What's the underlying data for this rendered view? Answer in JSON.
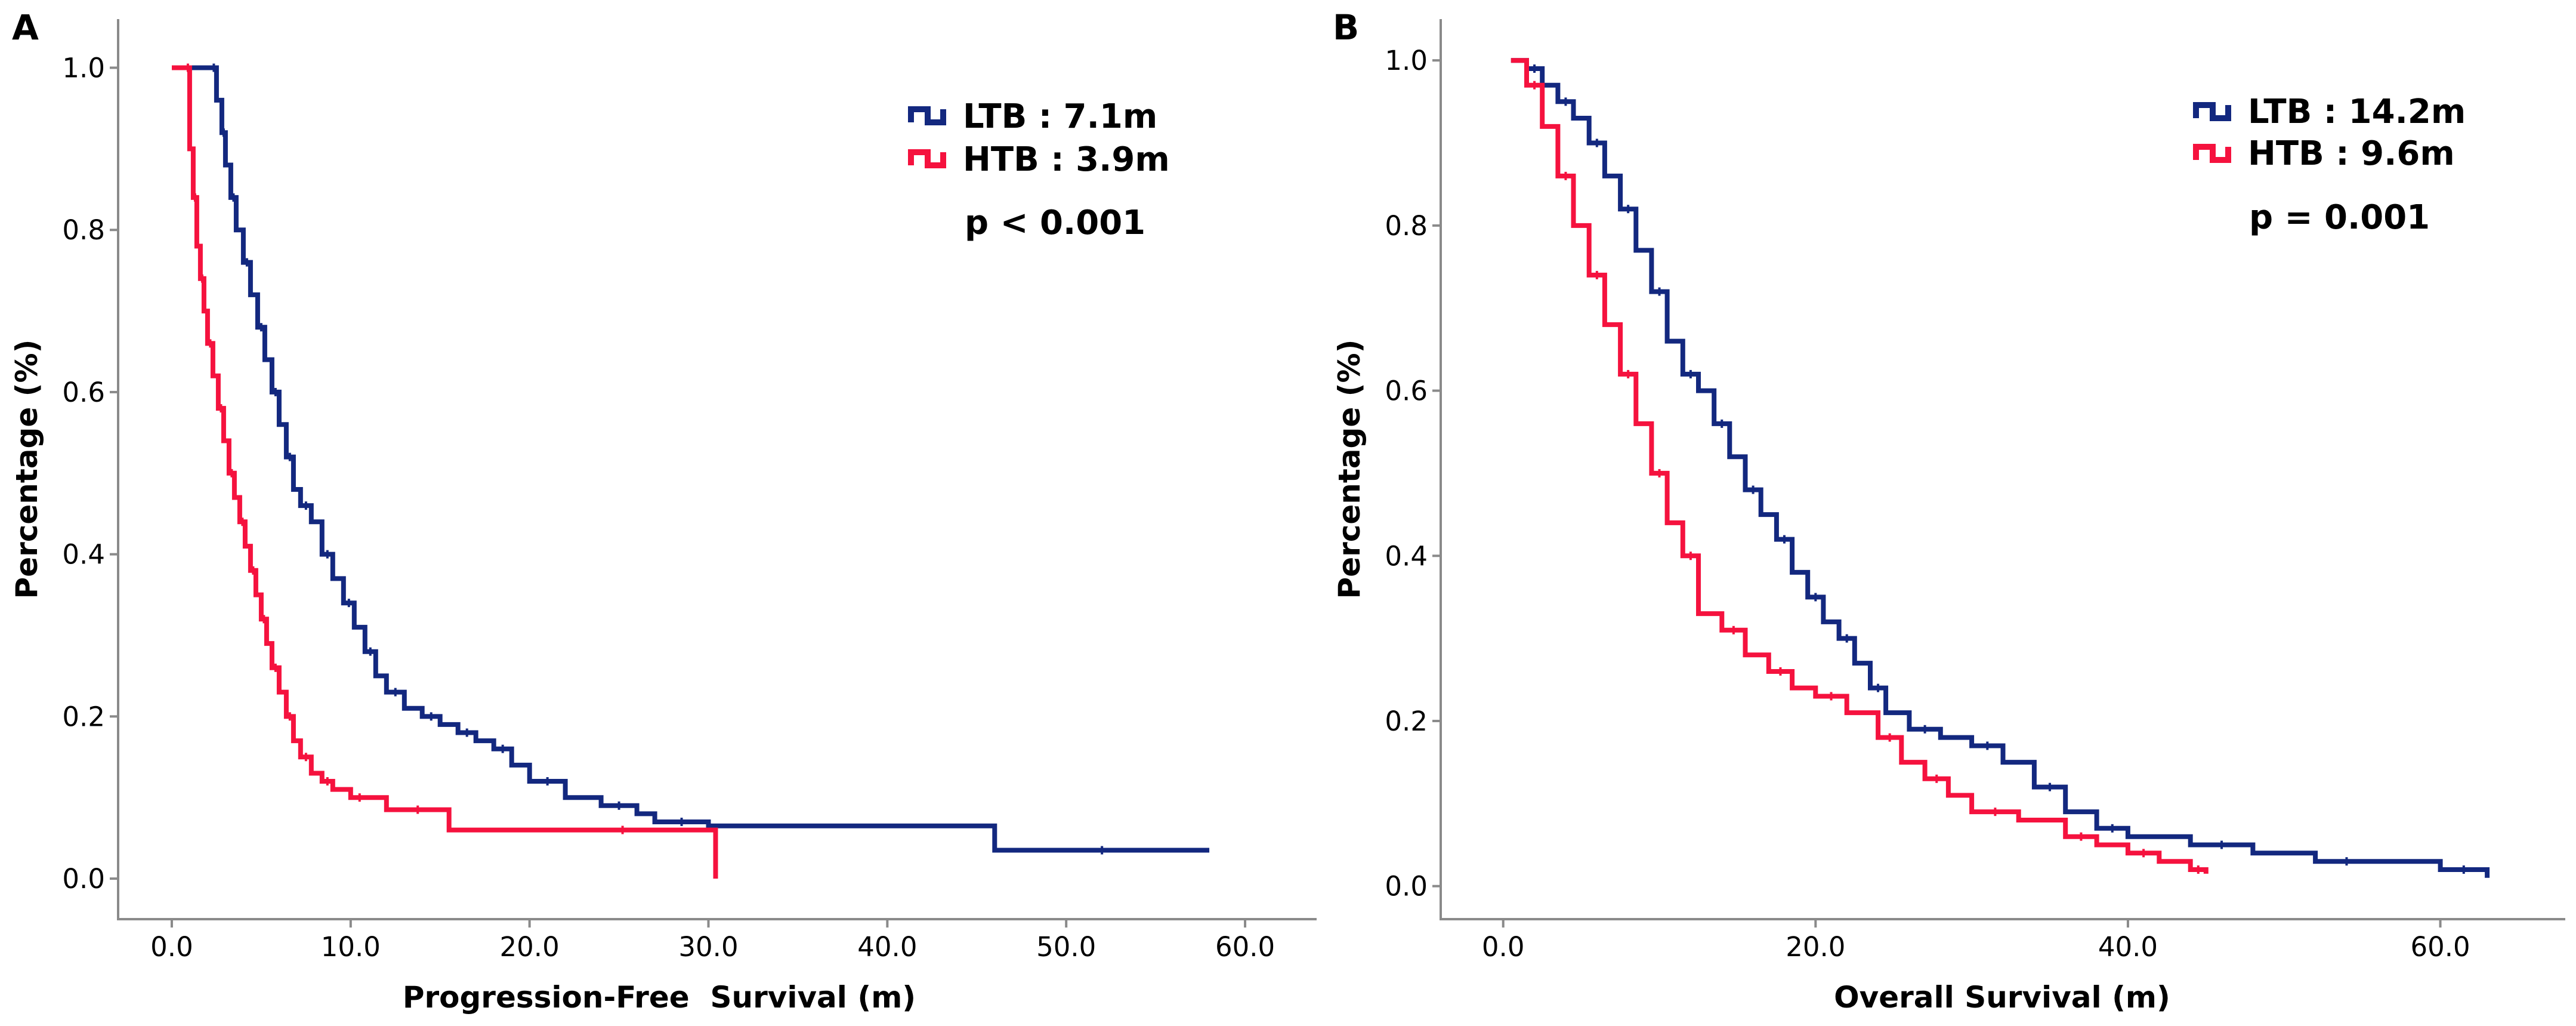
{
  "colors": {
    "ltb": "#13287f",
    "htb": "#f5123e",
    "axis": "#8a8a8a"
  },
  "chart_data": [
    {
      "panel": "A",
      "type": "line",
      "title": "",
      "xlabel": "Progression-Free  Survival (m)",
      "ylabel": "Percentage (%)",
      "xlim": [
        -3,
        64
      ],
      "ylim": [
        -0.05,
        1.06
      ],
      "xticks": [
        0,
        10,
        20,
        30,
        40,
        50,
        60
      ],
      "xtick_labels": [
        "0.0",
        "10.0",
        "20.0",
        "30.0",
        "40.0",
        "50.0",
        "60.0"
      ],
      "yticks": [
        0,
        0.2,
        0.4,
        0.6,
        0.8,
        1.0
      ],
      "ytick_labels": [
        "0.0",
        "0.2",
        "0.4",
        "0.6",
        "0.8",
        "1.0"
      ],
      "pvalue": "p < 0.001",
      "series": [
        {
          "name": "LTB : 7.1m",
          "color_key": "ltb",
          "x": [
            0,
            2.2,
            2.5,
            2.8,
            3.0,
            3.3,
            3.6,
            4.0,
            4.4,
            4.8,
            5.2,
            5.6,
            6.0,
            6.4,
            6.8,
            7.2,
            7.8,
            8.4,
            9.0,
            9.6,
            10.2,
            10.8,
            11.4,
            12.0,
            13.0,
            14.0,
            15.0,
            16.0,
            17.0,
            18.0,
            19.0,
            20.0,
            22.0,
            24.0,
            26.0,
            27.0,
            30.0,
            46.0,
            58.0
          ],
          "y": [
            1.0,
            1.0,
            0.96,
            0.92,
            0.88,
            0.84,
            0.8,
            0.76,
            0.72,
            0.68,
            0.64,
            0.6,
            0.56,
            0.52,
            0.48,
            0.46,
            0.44,
            0.4,
            0.37,
            0.34,
            0.31,
            0.28,
            0.25,
            0.23,
            0.21,
            0.2,
            0.19,
            0.18,
            0.17,
            0.16,
            0.14,
            0.12,
            0.1,
            0.09,
            0.08,
            0.07,
            0.065,
            0.035,
            0.035
          ]
        },
        {
          "name": "HTB : 3.9m",
          "color_key": "htb",
          "x": [
            0,
            0.8,
            1.0,
            1.2,
            1.4,
            1.6,
            1.8,
            2.0,
            2.3,
            2.6,
            2.9,
            3.2,
            3.5,
            3.8,
            4.1,
            4.4,
            4.7,
            5.0,
            5.3,
            5.6,
            6.0,
            6.4,
            6.8,
            7.2,
            7.8,
            8.4,
            9.0,
            10.0,
            11.0,
            12.0,
            15.5,
            20.0,
            30.4
          ],
          "y": [
            1.0,
            1.0,
            0.9,
            0.84,
            0.78,
            0.74,
            0.7,
            0.66,
            0.62,
            0.58,
            0.54,
            0.5,
            0.47,
            0.44,
            0.41,
            0.38,
            0.35,
            0.32,
            0.29,
            0.26,
            0.23,
            0.2,
            0.17,
            0.15,
            0.13,
            0.12,
            0.11,
            0.1,
            0.1,
            0.085,
            0.06,
            0.06,
            0.0
          ]
        }
      ]
    },
    {
      "panel": "B",
      "type": "line",
      "title": "",
      "xlabel": "Overall Survival (m)",
      "ylabel": "Percentage (%)",
      "xlim": [
        -4,
        68
      ],
      "ylim": [
        -0.04,
        1.05
      ],
      "xticks": [
        0,
        20,
        40,
        60
      ],
      "xtick_labels": [
        "0.0",
        "20.0",
        "40.0",
        "60.0"
      ],
      "yticks": [
        0,
        0.2,
        0.4,
        0.6,
        0.8,
        1.0
      ],
      "ytick_labels": [
        "0.0",
        "0.2",
        "0.4",
        "0.6",
        "0.8",
        "1.0"
      ],
      "pvalue": "p = 0.001",
      "series": [
        {
          "name": "LTB : 14.2m",
          "color_key": "ltb",
          "x": [
            0.5,
            1.5,
            2.5,
            3.5,
            4.5,
            5.5,
            6.5,
            7.5,
            8.5,
            9.5,
            10.5,
            11.5,
            12.5,
            13.5,
            14.5,
            15.5,
            16.5,
            17.5,
            18.5,
            19.5,
            20.5,
            21.5,
            22.5,
            23.5,
            24.5,
            26.0,
            28.0,
            30.0,
            32.0,
            34.0,
            36.0,
            38.0,
            40.0,
            44.0,
            48.0,
            52.0,
            56.0,
            60.0,
            63.0
          ],
          "y": [
            1.0,
            0.99,
            0.97,
            0.95,
            0.93,
            0.9,
            0.86,
            0.82,
            0.77,
            0.72,
            0.66,
            0.62,
            0.6,
            0.56,
            0.52,
            0.48,
            0.45,
            0.42,
            0.38,
            0.35,
            0.32,
            0.3,
            0.27,
            0.24,
            0.21,
            0.19,
            0.18,
            0.17,
            0.15,
            0.12,
            0.09,
            0.07,
            0.06,
            0.05,
            0.04,
            0.03,
            0.03,
            0.02,
            0.01
          ]
        },
        {
          "name": "HTB : 9.6m",
          "color_key": "htb",
          "x": [
            0.5,
            1.5,
            2.5,
            3.5,
            4.5,
            5.5,
            6.5,
            7.5,
            8.5,
            9.5,
            10.5,
            11.5,
            12.5,
            14.0,
            15.5,
            17.0,
            18.5,
            20.0,
            22.0,
            24.0,
            25.5,
            27.0,
            28.5,
            30.0,
            33.0,
            36.0,
            38.0,
            40.0,
            42.0,
            44.0,
            45.0
          ],
          "y": [
            1.0,
            0.97,
            0.92,
            0.86,
            0.8,
            0.74,
            0.68,
            0.62,
            0.56,
            0.5,
            0.44,
            0.4,
            0.33,
            0.31,
            0.28,
            0.26,
            0.24,
            0.23,
            0.21,
            0.18,
            0.15,
            0.13,
            0.11,
            0.09,
            0.08,
            0.06,
            0.05,
            0.04,
            0.03,
            0.02,
            0.015
          ]
        }
      ]
    }
  ]
}
